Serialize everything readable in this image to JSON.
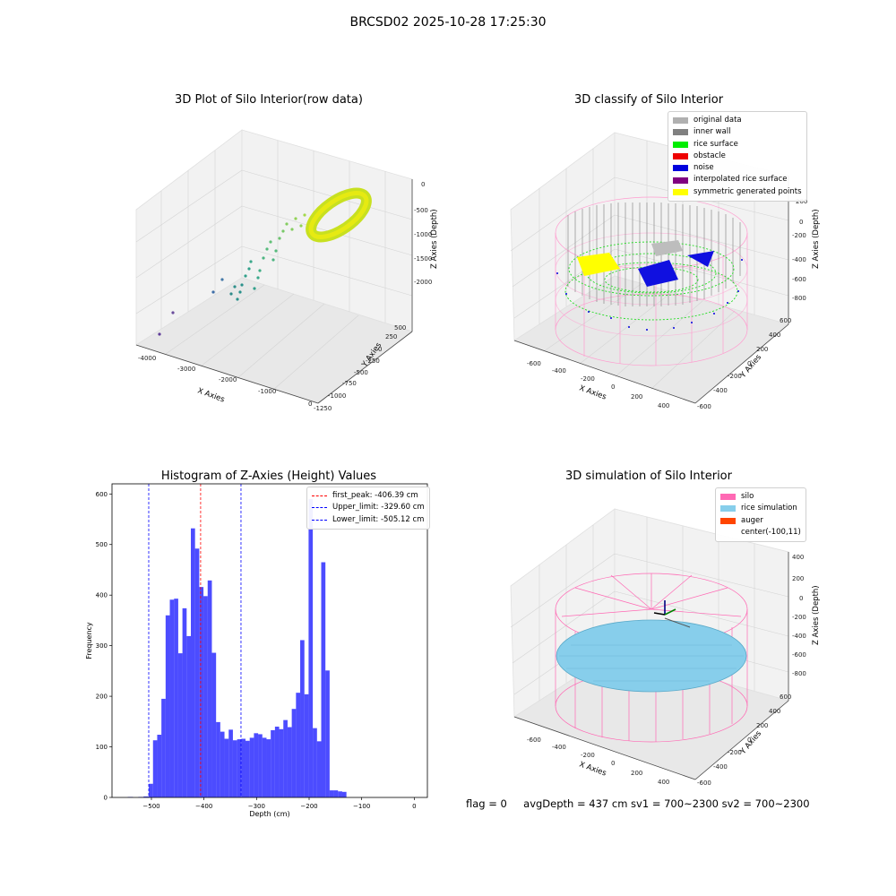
{
  "suptitle": "BRCSD02 2025-10-28 17:25:30",
  "plots": {
    "raw": {
      "title": "3D Plot of Silo Interior(row data)",
      "x_label": "X Axies",
      "y_label": "Y Axies",
      "z_label": "Z Axies (Depth)",
      "x_ticks": [
        "-4000",
        "-3000",
        "-2000",
        "-1000",
        "0"
      ],
      "y_ticks": [
        "500",
        "250",
        "0",
        "-250",
        "-500",
        "-750",
        "-1000",
        "-1250"
      ],
      "z_ticks": [
        "0",
        "-500",
        "-1000",
        "-1500",
        "-2000"
      ]
    },
    "classify": {
      "title": "3D classify of Silo Interior",
      "x_label": "X Axies",
      "y_label": "Y Axies",
      "z_label": "Z Axies (Depth)",
      "x_ticks": [
        "-600",
        "-400",
        "-200",
        "0",
        "200",
        "400"
      ],
      "y_ticks": [
        "600",
        "400",
        "200",
        "0",
        "-200",
        "-400",
        "-600"
      ],
      "z_ticks": [
        "200",
        "0",
        "-200",
        "-400",
        "-600",
        "-800"
      ],
      "legend": [
        {
          "label": "original data",
          "color": "#b0b0b0"
        },
        {
          "label": "inner wall",
          "color": "#808080"
        },
        {
          "label": "rice surface",
          "color": "#00ee00"
        },
        {
          "label": "obstacle",
          "color": "#ee0000"
        },
        {
          "label": "noise",
          "color": "#0000dd"
        },
        {
          "label": "interpolated rice surface",
          "color": "#800080"
        },
        {
          "label": "symmetric generated points",
          "color": "#ffff00"
        }
      ]
    },
    "simulation": {
      "title": "3D simulation of Silo Interior",
      "x_label": "X Axies",
      "y_label": "Y Axies",
      "z_label": "Z Axies (Depth)",
      "x_ticks": [
        "-600",
        "-400",
        "-200",
        "0",
        "200",
        "400"
      ],
      "y_ticks": [
        "600",
        "400",
        "200",
        "0",
        "-200",
        "-400",
        "-600"
      ],
      "z_ticks": [
        "400",
        "200",
        "0",
        "-200",
        "-400",
        "-600",
        "-800"
      ],
      "legend": [
        {
          "label": "silo",
          "color": "#ff69b4"
        },
        {
          "label": "rice simulation",
          "color": "#87ceeb"
        },
        {
          "label": "auger",
          "color": "#ff4500"
        },
        {
          "label": "center(-100,11)",
          "color": ""
        }
      ]
    }
  },
  "chart_data": {
    "type": "bar",
    "title": "Histogram of Z-Axies (Height) Values",
    "xlabel": "Depth (cm)",
    "ylabel": "Frequency",
    "xlim": [
      -575,
      25
    ],
    "ylim": [
      0,
      620
    ],
    "x_ticks": [
      -500,
      -400,
      -300,
      -200,
      -100,
      0
    ],
    "y_ticks": [
      0,
      100,
      200,
      300,
      400,
      500,
      600
    ],
    "bar_color": "#0000ff",
    "bins": [
      {
        "left": -545,
        "right": -535,
        "count": 1
      },
      {
        "left": -535,
        "right": -525,
        "count": 0
      },
      {
        "left": -525,
        "right": -515,
        "count": 1
      },
      {
        "left": -515,
        "right": -505,
        "count": 2
      },
      {
        "left": -505,
        "right": -497,
        "count": 27
      },
      {
        "left": -497,
        "right": -489,
        "count": 113
      },
      {
        "left": -489,
        "right": -481,
        "count": 124
      },
      {
        "left": -481,
        "right": -473,
        "count": 195
      },
      {
        "left": -473,
        "right": -465,
        "count": 360
      },
      {
        "left": -465,
        "right": -457,
        "count": 391
      },
      {
        "left": -457,
        "right": -449,
        "count": 393
      },
      {
        "left": -449,
        "right": -441,
        "count": 285
      },
      {
        "left": -441,
        "right": -433,
        "count": 374
      },
      {
        "left": -433,
        "right": -425,
        "count": 319
      },
      {
        "left": -425,
        "right": -417,
        "count": 532
      },
      {
        "left": -417,
        "right": -409,
        "count": 492
      },
      {
        "left": -409,
        "right": -401,
        "count": 416
      },
      {
        "left": -401,
        "right": -393,
        "count": 398
      },
      {
        "left": -393,
        "right": -385,
        "count": 429
      },
      {
        "left": -385,
        "right": -377,
        "count": 286
      },
      {
        "left": -377,
        "right": -369,
        "count": 149
      },
      {
        "left": -369,
        "right": -361,
        "count": 130
      },
      {
        "left": -361,
        "right": -353,
        "count": 116
      },
      {
        "left": -353,
        "right": -345,
        "count": 134
      },
      {
        "left": -345,
        "right": -337,
        "count": 113
      },
      {
        "left": -337,
        "right": -329,
        "count": 115
      },
      {
        "left": -329,
        "right": -321,
        "count": 116
      },
      {
        "left": -321,
        "right": -313,
        "count": 112
      },
      {
        "left": -313,
        "right": -305,
        "count": 118
      },
      {
        "left": -305,
        "right": -297,
        "count": 127
      },
      {
        "left": -297,
        "right": -289,
        "count": 125
      },
      {
        "left": -289,
        "right": -281,
        "count": 118
      },
      {
        "left": -281,
        "right": -273,
        "count": 115
      },
      {
        "left": -273,
        "right": -265,
        "count": 133
      },
      {
        "left": -265,
        "right": -257,
        "count": 140
      },
      {
        "left": -257,
        "right": -249,
        "count": 135
      },
      {
        "left": -249,
        "right": -241,
        "count": 153
      },
      {
        "left": -241,
        "right": -233,
        "count": 139
      },
      {
        "left": -233,
        "right": -225,
        "count": 175
      },
      {
        "left": -225,
        "right": -217,
        "count": 207
      },
      {
        "left": -217,
        "right": -209,
        "count": 311
      },
      {
        "left": -209,
        "right": -201,
        "count": 204
      },
      {
        "left": -201,
        "right": -193,
        "count": 590
      },
      {
        "left": -193,
        "right": -185,
        "count": 137
      },
      {
        "left": -185,
        "right": -177,
        "count": 111
      },
      {
        "left": -177,
        "right": -169,
        "count": 465
      },
      {
        "left": -169,
        "right": -161,
        "count": 251
      },
      {
        "left": -161,
        "right": -153,
        "count": 14
      },
      {
        "left": -153,
        "right": -145,
        "count": 14
      },
      {
        "left": -145,
        "right": -137,
        "count": 12
      },
      {
        "left": -137,
        "right": -129,
        "count": 11
      }
    ],
    "lines": [
      {
        "label": "first_peak: -406.39 cm",
        "x": -406.39,
        "color": "#ff0000"
      },
      {
        "label": "Upper_limit: -329.60 cm",
        "x": -329.6,
        "color": "#0000ff"
      },
      {
        "label": "Lower_limit: -505.12 cm",
        "x": -505.12,
        "color": "#0000ff"
      }
    ]
  },
  "footer": {
    "flag": "flag = 0",
    "stats": "avgDepth = 437 cm  sv1 = 700~2300  sv2 = 700~2300"
  }
}
